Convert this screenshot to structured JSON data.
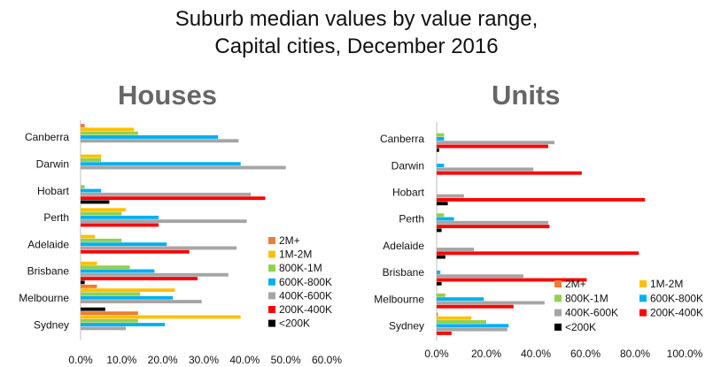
{
  "title_lines": [
    "Suburb median values by value range,",
    "Capital cities, December 2016"
  ],
  "series_colors": {
    "2M+": "#ed7d31",
    "1M-2M": "#ffc000",
    "800K-1M": "#92d050",
    "600K-800K": "#00b0f0",
    "400K-600K": "#a5a5a5",
    "200K-400K": "#ff0000",
    "<200K": "#000000"
  },
  "chart_data": [
    {
      "type": "bar",
      "orientation": "horizontal",
      "title": "Houses",
      "categories": [
        "Canberra",
        "Darwin",
        "Hobart",
        "Perth",
        "Adelaide",
        "Brisbane",
        "Melbourne",
        "Sydney"
      ],
      "xlim": [
        0,
        0.6
      ],
      "xticks": [
        "0.0%",
        "10.0%",
        "20.0%",
        "30.0%",
        "40.0%",
        "50.0%",
        "60.0%"
      ],
      "legend_position": "bottom-right",
      "series": [
        {
          "name": "2M+",
          "values": [
            0.01,
            0.0,
            0.0,
            0.0,
            0.0,
            0.0,
            0.04,
            0.14
          ]
        },
        {
          "name": "1M-2M",
          "values": [
            0.13,
            0.05,
            0.0,
            0.11,
            0.035,
            0.04,
            0.23,
            0.39
          ]
        },
        {
          "name": "800K-1M",
          "values": [
            0.14,
            0.05,
            0.01,
            0.1,
            0.1,
            0.12,
            0.145,
            0.14
          ]
        },
        {
          "name": "600K-800K",
          "values": [
            0.335,
            0.39,
            0.05,
            0.19,
            0.21,
            0.18,
            0.225,
            0.205
          ]
        },
        {
          "name": "400K-600K",
          "values": [
            0.385,
            0.5,
            0.415,
            0.405,
            0.38,
            0.36,
            0.295,
            0.11
          ]
        },
        {
          "name": "200K-400K",
          "values": [
            0.0,
            0.0,
            0.45,
            0.19,
            0.265,
            0.285,
            0.0,
            0.0
          ]
        },
        {
          "name": "<200K",
          "values": [
            0.0,
            0.0,
            0.07,
            0.0,
            0.0,
            0.01,
            0.06,
            0.0
          ]
        }
      ]
    },
    {
      "type": "bar",
      "orientation": "horizontal",
      "title": "Units",
      "categories": [
        "Canberra",
        "Darwin",
        "Hobart",
        "Perth",
        "Adelaide",
        "Brisbane",
        "Melbourne",
        "Sydney"
      ],
      "xlim": [
        0,
        1.0
      ],
      "xticks": [
        "0.0%",
        "20.0%",
        "40.0%",
        "60.0%",
        "80.0%",
        "100.0%"
      ],
      "legend_position": "bottom-right",
      "series": [
        {
          "name": "2M+",
          "values": [
            0.0,
            0.0,
            0.0,
            0.0,
            0.0,
            0.0,
            0.0,
            0.005
          ]
        },
        {
          "name": "1M-2M",
          "values": [
            0.0,
            0.0,
            0.0,
            0.0,
            0.0,
            0.0,
            0.0,
            0.14
          ]
        },
        {
          "name": "800K-1M",
          "values": [
            0.03,
            0.0,
            0.0,
            0.03,
            0.0,
            0.0,
            0.035,
            0.2
          ]
        },
        {
          "name": "600K-800K",
          "values": [
            0.03,
            0.03,
            0.0,
            0.07,
            0.0,
            0.015,
            0.19,
            0.29
          ]
        },
        {
          "name": "400K-600K",
          "values": [
            0.475,
            0.39,
            0.11,
            0.45,
            0.15,
            0.35,
            0.435,
            0.285
          ]
        },
        {
          "name": "200K-400K",
          "values": [
            0.45,
            0.585,
            0.84,
            0.455,
            0.815,
            0.605,
            0.31,
            0.06
          ]
        },
        {
          "name": "<200K",
          "values": [
            0.01,
            0.0,
            0.045,
            0.02,
            0.035,
            0.02,
            0.0,
            0.0
          ]
        }
      ]
    }
  ]
}
